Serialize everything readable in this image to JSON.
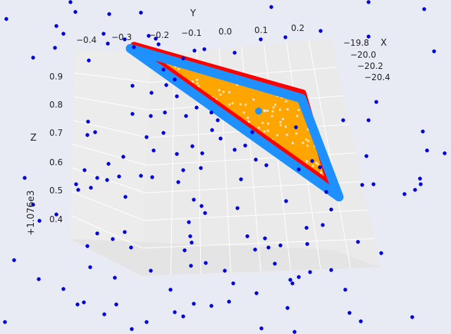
{
  "chart_data": {
    "type": "scatter",
    "projection": "3d",
    "axes": {
      "x": {
        "label": "X",
        "ticks": [
          "−19.8",
          "−20.0",
          "−20.2",
          "−20.4"
        ]
      },
      "y": {
        "label": "Y",
        "ticks": [
          "−0.4",
          "−0.3",
          "−0.2",
          "−0.1",
          "0.0",
          "0.1",
          "0.2"
        ]
      },
      "z": {
        "label": "Z",
        "ticks": [
          "0.9",
          "0.8",
          "0.7",
          "0.6",
          "0.5",
          "0.4"
        ],
        "offset_text": "+1.076e3"
      }
    },
    "grid": true,
    "colors": {
      "background": "#e8eaf4",
      "pane": "#ebebeb",
      "scatter": "#0000d6",
      "fill": "#ffa500",
      "outline_outer": "#ff0000",
      "outline_inner": "#1e90ff"
    }
  }
}
